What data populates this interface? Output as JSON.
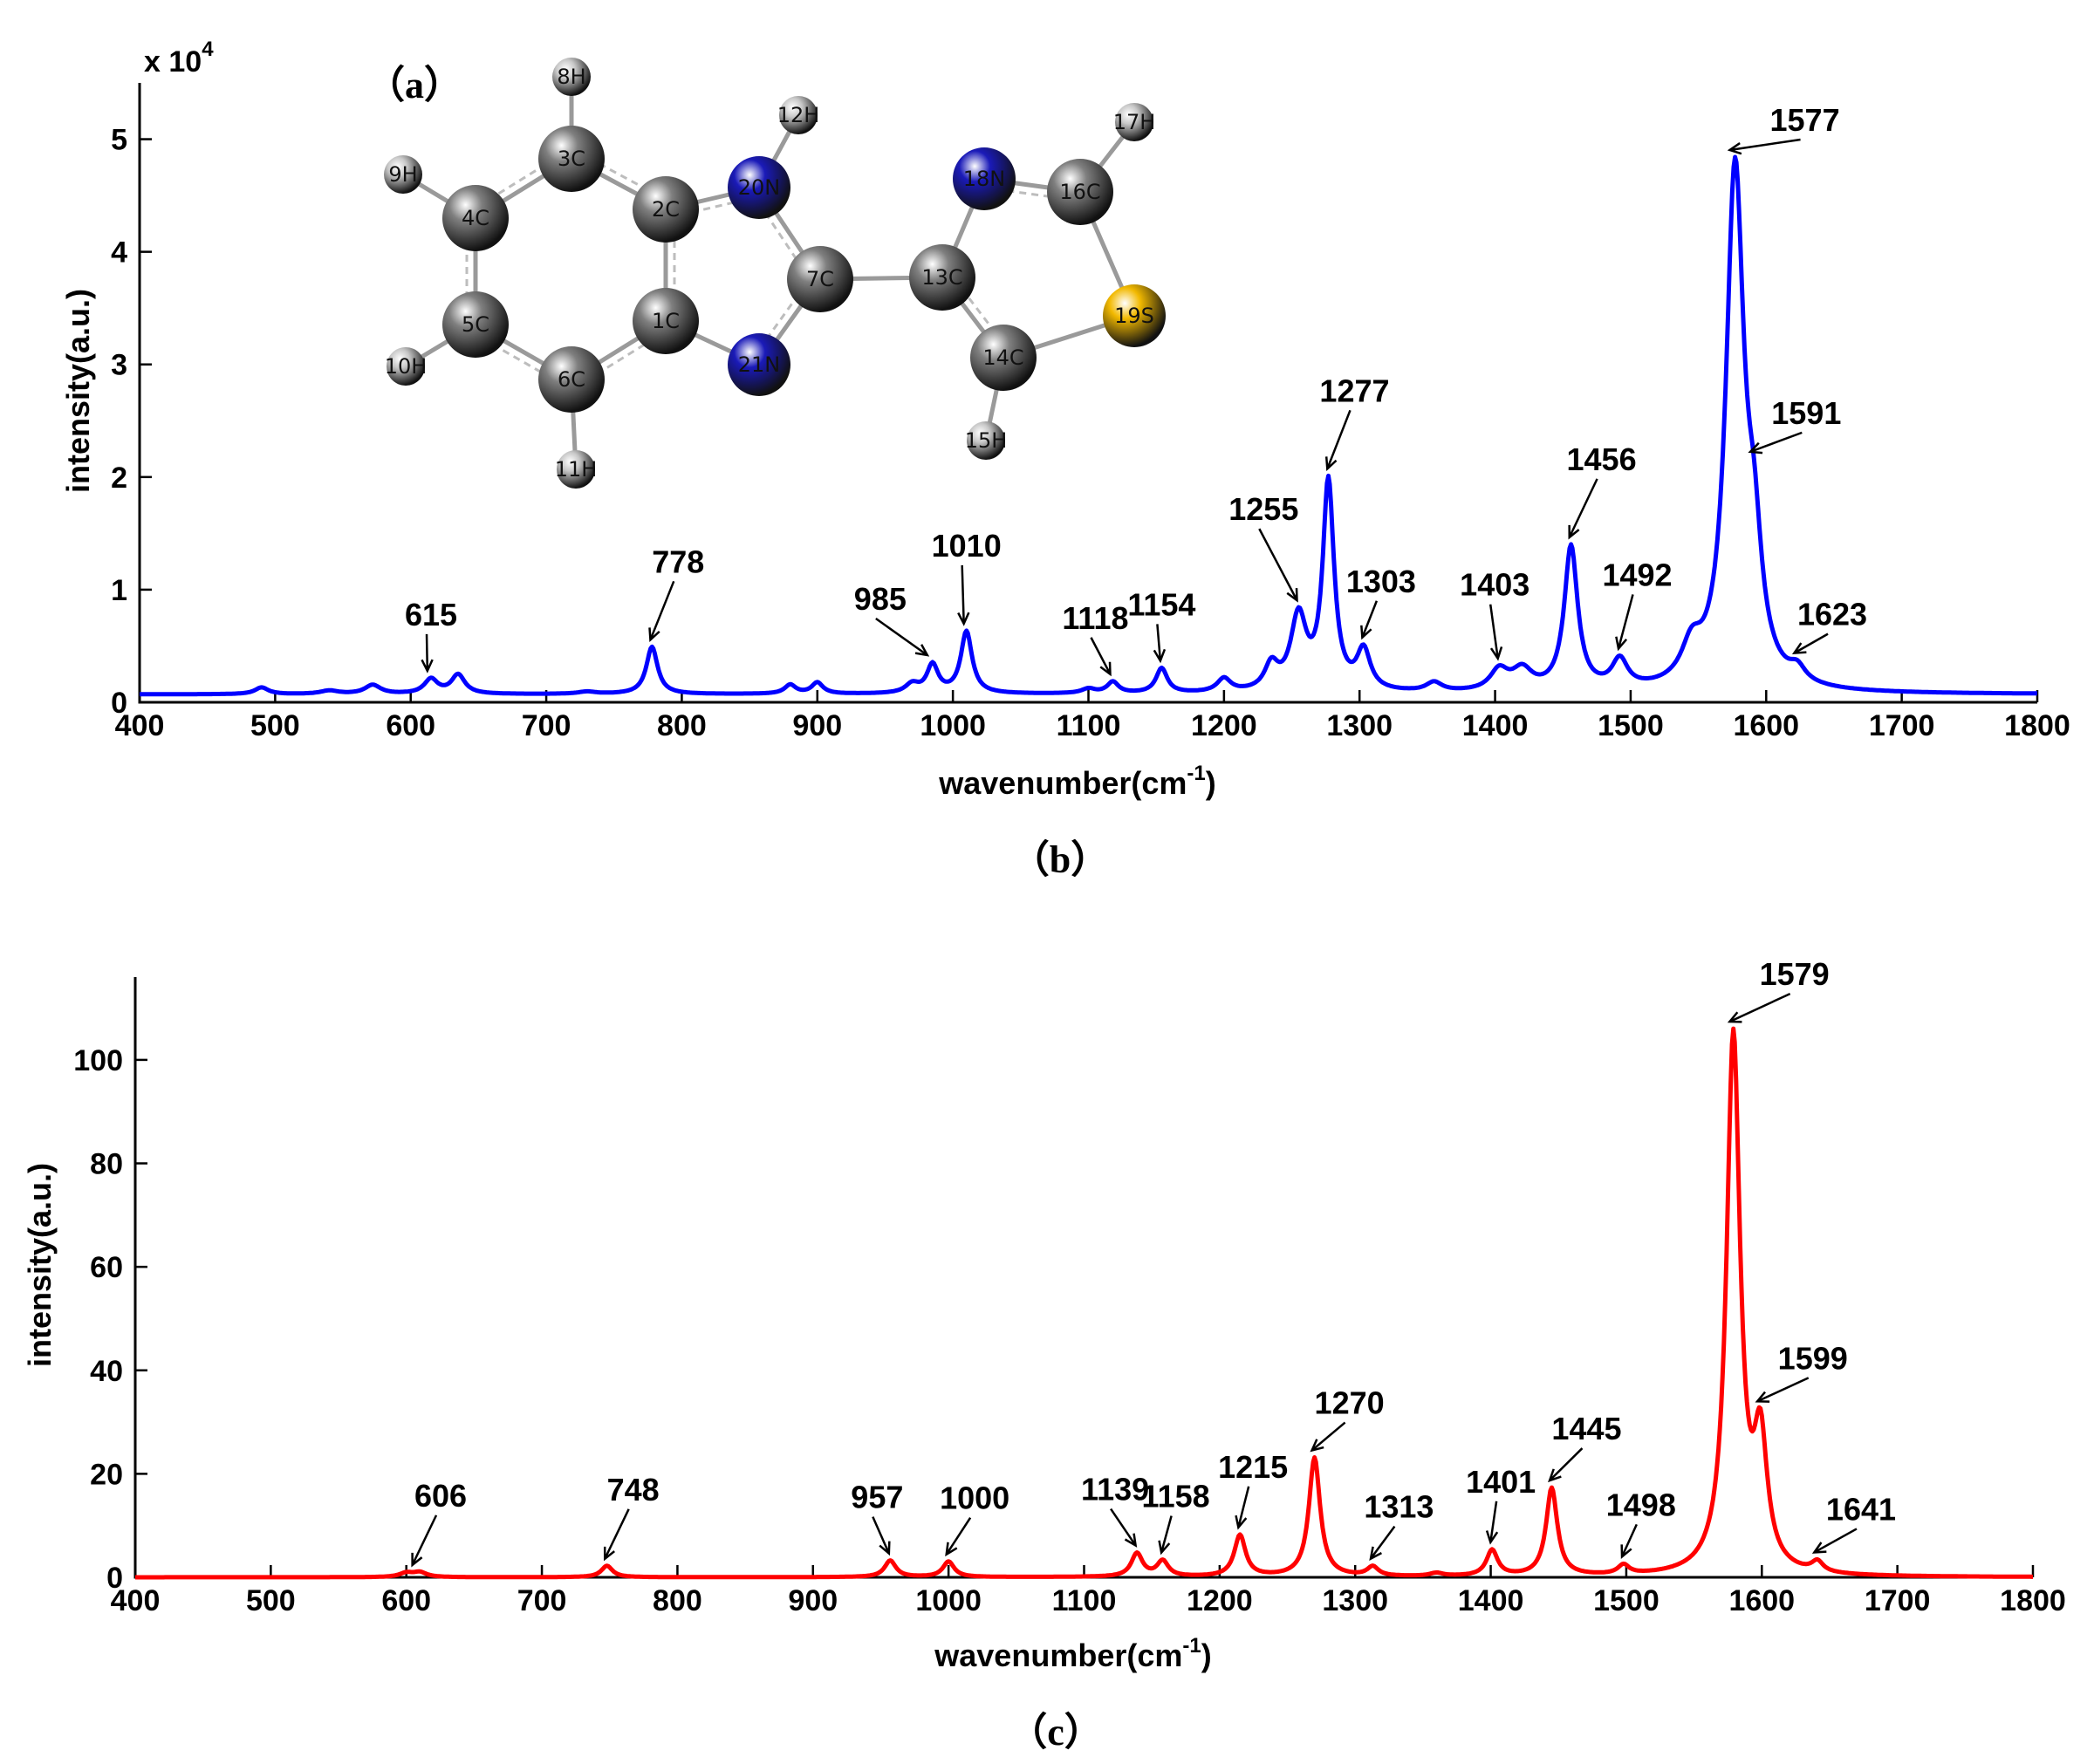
{
  "chart_data": [
    {
      "type": "line",
      "panel_label": "（b）",
      "xlabel": "wavenumber(cm",
      "xlabel_sup": "-1",
      "xlabel_end": ")",
      "ylabel": "intensity(a.u.)",
      "multiplier": "x 10",
      "multiplier_exp": "4",
      "xlim": [
        400,
        1800
      ],
      "ylim": [
        0,
        5.5
      ],
      "xticks": [
        400,
        500,
        600,
        700,
        800,
        900,
        1000,
        1100,
        1200,
        1300,
        1400,
        1500,
        1600,
        1700,
        1800
      ],
      "yticks": [
        0,
        1,
        2,
        3,
        4,
        5
      ],
      "color": "#0000ff",
      "baseline": 0.07,
      "peaks": [
        {
          "x": 490,
          "y": 0.06,
          "w": 6
        },
        {
          "x": 540,
          "y": 0.03,
          "w": 8
        },
        {
          "x": 572,
          "y": 0.08,
          "w": 7
        },
        {
          "x": 615,
          "y": 0.13,
          "w": 6
        },
        {
          "x": 635,
          "y": 0.17,
          "w": 6
        },
        {
          "x": 730,
          "y": 0.02,
          "w": 8
        },
        {
          "x": 778,
          "y": 0.42,
          "w": 5
        },
        {
          "x": 880,
          "y": 0.08,
          "w": 5
        },
        {
          "x": 900,
          "y": 0.1,
          "w": 5
        },
        {
          "x": 970,
          "y": 0.08,
          "w": 6
        },
        {
          "x": 985,
          "y": 0.25,
          "w": 5
        },
        {
          "x": 1010,
          "y": 0.55,
          "w": 5
        },
        {
          "x": 1100,
          "y": 0.04,
          "w": 6
        },
        {
          "x": 1118,
          "y": 0.1,
          "w": 5
        },
        {
          "x": 1154,
          "y": 0.22,
          "w": 5
        },
        {
          "x": 1200,
          "y": 0.12,
          "w": 6
        },
        {
          "x": 1235,
          "y": 0.22,
          "w": 6
        },
        {
          "x": 1255,
          "y": 0.65,
          "w": 7
        },
        {
          "x": 1277,
          "y": 1.85,
          "w": 5
        },
        {
          "x": 1303,
          "y": 0.35,
          "w": 6
        },
        {
          "x": 1355,
          "y": 0.08,
          "w": 7
        },
        {
          "x": 1403,
          "y": 0.18,
          "w": 8
        },
        {
          "x": 1420,
          "y": 0.18,
          "w": 9
        },
        {
          "x": 1456,
          "y": 1.28,
          "w": 6
        },
        {
          "x": 1492,
          "y": 0.25,
          "w": 7
        },
        {
          "x": 1545,
          "y": 0.3,
          "w": 9
        },
        {
          "x": 1577,
          "y": 4.55,
          "w": 8
        },
        {
          "x": 1591,
          "y": 0.95,
          "w": 7
        },
        {
          "x": 1623,
          "y": 0.12,
          "w": 7
        }
      ],
      "labels": [
        {
          "x": 615,
          "text": "615"
        },
        {
          "x": 778,
          "text": "778"
        },
        {
          "x": 985,
          "text": "985"
        },
        {
          "x": 1010,
          "text": "1010"
        },
        {
          "x": 1118,
          "text": "1118"
        },
        {
          "x": 1154,
          "text": "1154"
        },
        {
          "x": 1255,
          "text": "1255"
        },
        {
          "x": 1277,
          "text": "1277"
        },
        {
          "x": 1303,
          "text": "1303"
        },
        {
          "x": 1403,
          "text": "1403"
        },
        {
          "x": 1456,
          "text": "1456"
        },
        {
          "x": 1492,
          "text": "1492"
        },
        {
          "x": 1577,
          "text": "1577"
        },
        {
          "x": 1591,
          "text": "1591"
        },
        {
          "x": 1623,
          "text": "1623"
        }
      ]
    },
    {
      "type": "line",
      "panel_label": "（c）",
      "xlabel": "wavenumber(cm",
      "xlabel_sup": "-1",
      "xlabel_end": ")",
      "ylabel": "intensity(a.u.)",
      "xlim": [
        400,
        1800
      ],
      "ylim": [
        0,
        116
      ],
      "xticks": [
        400,
        500,
        600,
        700,
        800,
        900,
        1000,
        1100,
        1200,
        1300,
        1400,
        1500,
        1600,
        1700,
        1800
      ],
      "yticks": [
        0,
        20,
        40,
        60,
        80,
        100
      ],
      "color": "#ff0000",
      "baseline": 0,
      "peaks": [
        {
          "x": 600,
          "y": 0.8,
          "w": 6
        },
        {
          "x": 610,
          "y": 0.9,
          "w": 6
        },
        {
          "x": 748,
          "y": 2.2,
          "w": 5
        },
        {
          "x": 957,
          "y": 3.2,
          "w": 5
        },
        {
          "x": 1000,
          "y": 3.0,
          "w": 5
        },
        {
          "x": 1139,
          "y": 4.5,
          "w": 5
        },
        {
          "x": 1158,
          "y": 3.0,
          "w": 5
        },
        {
          "x": 1215,
          "y": 8.0,
          "w": 5
        },
        {
          "x": 1270,
          "y": 23.0,
          "w": 5
        },
        {
          "x": 1313,
          "y": 1.8,
          "w": 5
        },
        {
          "x": 1360,
          "y": 0.6,
          "w": 6
        },
        {
          "x": 1401,
          "y": 5.0,
          "w": 5
        },
        {
          "x": 1445,
          "y": 17.0,
          "w": 5
        },
        {
          "x": 1498,
          "y": 1.8,
          "w": 5
        },
        {
          "x": 1579,
          "y": 104.0,
          "w": 6
        },
        {
          "x": 1599,
          "y": 24.0,
          "w": 6
        },
        {
          "x": 1641,
          "y": 2.0,
          "w": 5
        }
      ],
      "labels": [
        {
          "x": 606,
          "text": "606"
        },
        {
          "x": 748,
          "text": "748"
        },
        {
          "x": 957,
          "text": "957"
        },
        {
          "x": 1000,
          "text": "1000"
        },
        {
          "x": 1139,
          "text": "1139"
        },
        {
          "x": 1158,
          "text": "1158"
        },
        {
          "x": 1215,
          "text": "1215"
        },
        {
          "x": 1270,
          "text": "1270"
        },
        {
          "x": 1313,
          "text": "1313"
        },
        {
          "x": 1401,
          "text": "1401"
        },
        {
          "x": 1445,
          "text": "1445"
        },
        {
          "x": 1498,
          "text": "1498"
        },
        {
          "x": 1579,
          "text": "1579"
        },
        {
          "x": 1599,
          "text": "1599"
        },
        {
          "x": 1641,
          "text": "1641"
        }
      ]
    }
  ],
  "molecule": {
    "panel_label": "（a）",
    "atoms": [
      {
        "id": "1C",
        "element": "C"
      },
      {
        "id": "2C",
        "element": "C"
      },
      {
        "id": "3C",
        "element": "C"
      },
      {
        "id": "4C",
        "element": "C"
      },
      {
        "id": "5C",
        "element": "C"
      },
      {
        "id": "6C",
        "element": "C"
      },
      {
        "id": "7C",
        "element": "C"
      },
      {
        "id": "8H",
        "element": "H"
      },
      {
        "id": "9H",
        "element": "H"
      },
      {
        "id": "10H",
        "element": "H"
      },
      {
        "id": "11H",
        "element": "H"
      },
      {
        "id": "12H",
        "element": "H"
      },
      {
        "id": "13C",
        "element": "C"
      },
      {
        "id": "14C",
        "element": "C"
      },
      {
        "id": "15H",
        "element": "H"
      },
      {
        "id": "16C",
        "element": "C"
      },
      {
        "id": "17H",
        "element": "H"
      },
      {
        "id": "18N",
        "element": "N"
      },
      {
        "id": "19S",
        "element": "S"
      },
      {
        "id": "20N",
        "element": "N"
      },
      {
        "id": "21N",
        "element": "N"
      }
    ],
    "element_colors": {
      "C": "#7f7f7f",
      "H": "#c8c8c8",
      "N": "#1a1ab8",
      "S": "#f2b900"
    }
  }
}
